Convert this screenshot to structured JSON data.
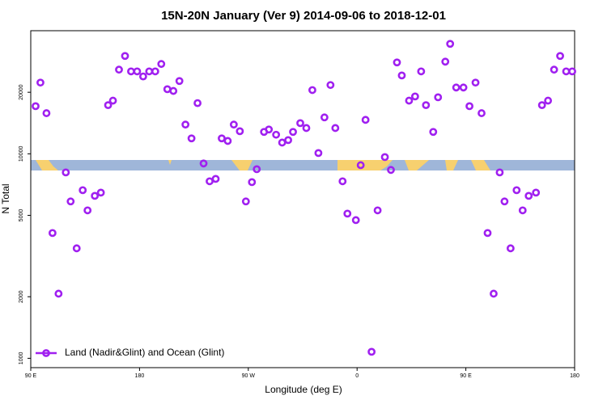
{
  "chart_data": {
    "type": "scatter",
    "title": "15N-20N January (Ver 9)   2014-09-06 to 2018-12-01",
    "x_label": "Longitude (deg E)",
    "y_label": "N Total",
    "log_y": true,
    "legend": "bottom left",
    "xlim": [
      90,
      540
    ],
    "xticks": [
      {
        "value": 90,
        "label": "90 E"
      },
      {
        "value": 180,
        "label": "180"
      },
      {
        "value": 270,
        "label": "90 W"
      },
      {
        "value": 360,
        "label": "0"
      },
      {
        "value": 450,
        "label": "90 E"
      },
      {
        "value": 540,
        "label": "180"
      }
    ],
    "ylim": [
      900,
      40000
    ],
    "yticks": [
      1000,
      2000,
      5000,
      10000,
      20000
    ],
    "series": [
      {
        "name": "Land (Nadir&Glint) and Ocean (Glint)",
        "color": "#a020f0",
        "x": [
          94,
          98,
          103,
          108,
          113,
          119,
          123,
          128,
          133,
          137,
          143,
          148,
          154,
          158,
          163,
          168,
          173,
          178,
          183,
          188,
          193,
          198,
          203,
          208,
          213,
          218,
          223,
          228,
          233,
          238,
          243,
          248,
          253,
          258,
          263,
          268,
          273,
          277,
          283,
          287,
          293,
          298,
          303,
          307,
          313,
          318,
          323,
          328,
          333,
          338,
          342,
          348,
          352,
          359,
          363,
          367,
          372,
          377,
          383,
          388,
          393,
          397,
          403,
          408,
          413,
          417,
          423,
          427,
          433,
          437,
          442,
          448,
          453,
          458,
          463,
          468,
          473,
          478,
          482,
          487,
          492,
          497,
          502,
          508,
          513,
          518,
          523,
          528,
          533,
          538
        ],
        "values": [
          17100,
          22300,
          15800,
          4100,
          2070,
          8110,
          5850,
          3450,
          6640,
          5290,
          6230,
          6460,
          17300,
          18200,
          25800,
          30100,
          25300,
          25300,
          23900,
          25300,
          25300,
          27500,
          20700,
          20300,
          22700,
          13900,
          11900,
          17700,
          8970,
          7340,
          7540,
          11900,
          11560,
          13900,
          12900,
          5850,
          7270,
          8410,
          12800,
          13150,
          12400,
          11350,
          11670,
          12800,
          14130,
          13370,
          20500,
          10090,
          15070,
          21700,
          13370,
          7340,
          5100,
          4740,
          8800,
          14660,
          1076,
          5290,
          9640,
          8340,
          27990,
          24170,
          18200,
          19080,
          25300,
          17300,
          12800,
          18900,
          28230,
          34500,
          21100,
          21100,
          17100,
          22300,
          15800,
          4100,
          2070,
          8110,
          5850,
          3450,
          6640,
          5290,
          6230,
          6460,
          17300,
          18200,
          25800,
          30100,
          25300,
          25300
        ]
      }
    ]
  }
}
